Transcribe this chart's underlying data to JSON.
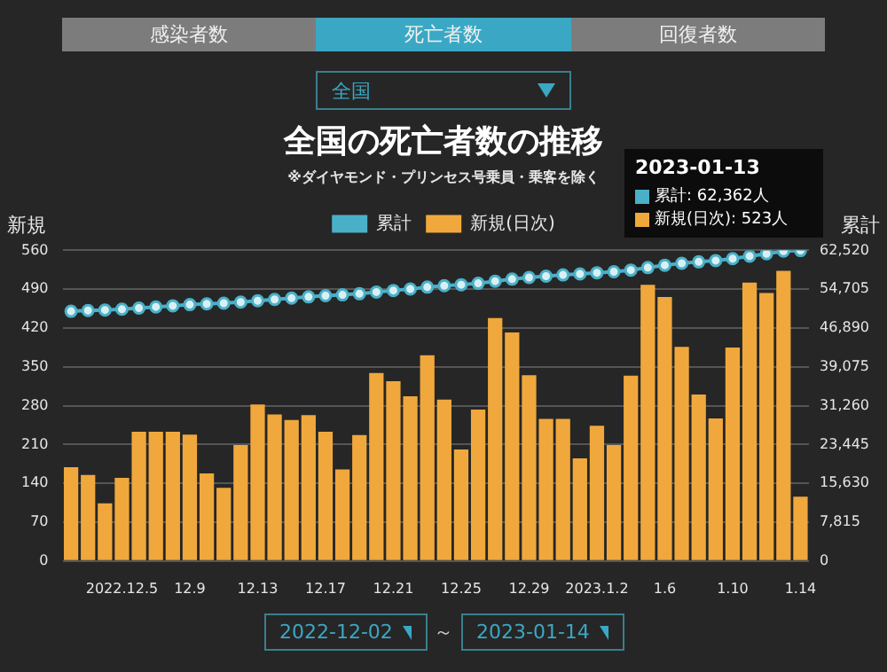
{
  "chart_data": {
    "type": "bar",
    "title": "全国の死亡者数の推移",
    "subtitle": "※ダイヤモンド・プリンセス号乗員・乗客を除く",
    "ylabel": "新規",
    "y2label": "累計",
    "categories": [
      null,
      null,
      null,
      "2022.12.5",
      null,
      null,
      null,
      "12.9",
      null,
      null,
      null,
      "12.13",
      null,
      null,
      null,
      "12.17",
      null,
      null,
      null,
      "12.21",
      null,
      null,
      null,
      "12.25",
      null,
      null,
      null,
      "12.29",
      null,
      null,
      null,
      "2023.1.2",
      null,
      null,
      null,
      "1.6",
      null,
      null,
      null,
      "1.10",
      null,
      null,
      null,
      "1.14"
    ],
    "series": [
      {
        "name": "累計",
        "type": "line",
        "axis": "y2",
        "color": "#4ab0c8",
        "values": [
          50260,
          50420,
          50520,
          50670,
          50910,
          51140,
          51370,
          51600,
          51760,
          51890,
          52100,
          52380,
          52650,
          52900,
          53160,
          53400,
          53560,
          53790,
          54130,
          54450,
          54750,
          55120,
          55410,
          55610,
          55880,
          56320,
          56730,
          57070,
          57320,
          57580,
          57770,
          58010,
          58220,
          58550,
          59050,
          59530,
          59910,
          60210,
          60470,
          60850,
          61360,
          61840,
          62362,
          62480
        ]
      },
      {
        "name": "新規(日次)",
        "color": "#f0a83c",
        "values": [
          169,
          155,
          104,
          150,
          233,
          233,
          233,
          228,
          158,
          132,
          209,
          282,
          264,
          254,
          263,
          233,
          165,
          227,
          339,
          324,
          297,
          371,
          291,
          201,
          273,
          438,
          412,
          335,
          256,
          256,
          185,
          244,
          209,
          334,
          498,
          476,
          386,
          300,
          257,
          385,
          502,
          483,
          523,
          116
        ]
      }
    ],
    "ylim": [
      0,
      560
    ],
    "yticks": [
      0,
      70,
      140,
      210,
      280,
      350,
      420,
      490,
      560
    ],
    "y2lim": [
      0,
      62520
    ],
    "y2ticks": [
      {
        "value": 0,
        "label": "0"
      },
      {
        "value": 7815,
        "label": "7,815"
      },
      {
        "value": 15630,
        "label": "15,630"
      },
      {
        "value": 23445,
        "label": "23,445"
      },
      {
        "value": 31260,
        "label": "31,260"
      },
      {
        "value": 39075,
        "label": "39,075"
      },
      {
        "value": 46890,
        "label": "46,890"
      },
      {
        "value": 54705,
        "label": "54,705"
      },
      {
        "value": 62520,
        "label": "62,520"
      }
    ],
    "grid": "y",
    "legend": "top",
    "marker": "circle",
    "annotations": [
      "感染者数",
      "死亡者数",
      "回復者数",
      "全国",
      "2023-01-13",
      "累計: 62,362人",
      "新規(日次): 523人",
      "2022-12-02",
      "～",
      "2023-01-14"
    ]
  }
}
